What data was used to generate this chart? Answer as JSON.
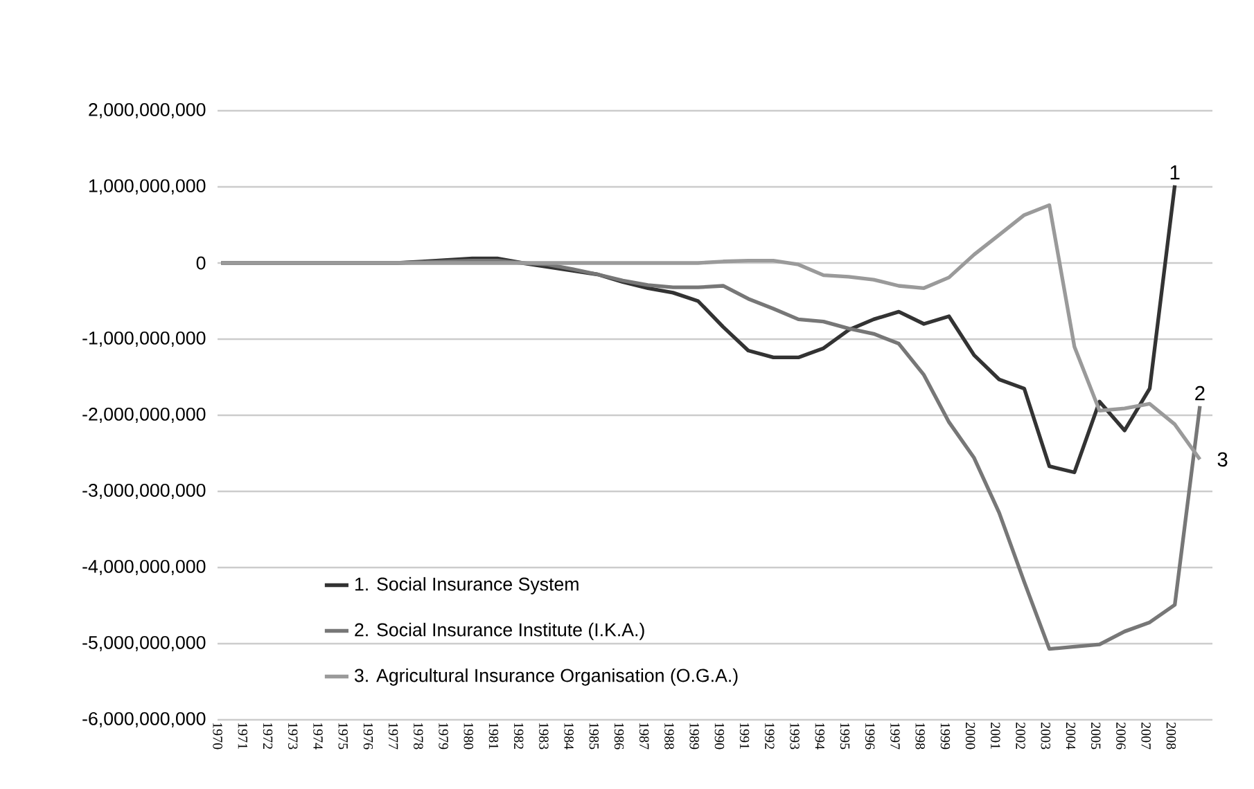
{
  "chart_data": {
    "type": "line",
    "categories": [
      "1970",
      "1971",
      "1972",
      "1973",
      "1974",
      "1975",
      "1976",
      "1977",
      "1978",
      "1979",
      "1980",
      "1981",
      "1982",
      "1983",
      "1984",
      "1985",
      "1986",
      "1987",
      "1988",
      "1989",
      "1990",
      "1991",
      "1992",
      "1993",
      "1994",
      "1995",
      "1996",
      "1997",
      "1998",
      "1999",
      "2000",
      "2001",
      "2002",
      "2003",
      "2004",
      "2005",
      "2006",
      "2007",
      "2008",
      null
    ],
    "series": [
      {
        "name": "1. Social Insurance System",
        "color": "#333333",
        "values": [
          0,
          0,
          0,
          0,
          0,
          0,
          0,
          0,
          20000000,
          40000000,
          60000000,
          60000000,
          0,
          -50000000,
          -100000000,
          -150000000,
          -250000000,
          -330000000,
          -390000000,
          -500000000,
          -840000000,
          -1150000000,
          -1240000000,
          -1240000000,
          -1120000000,
          -880000000,
          -740000000,
          -640000000,
          -800000000,
          -700000000,
          -1210000000,
          -1530000000,
          -1650000000,
          -2670000000,
          -2750000000,
          -1820000000,
          -2200000000,
          -1650000000,
          1020000000,
          null
        ]
      },
      {
        "name": "2. Social Insurance Institute (I.K.A.)",
        "color": "#777777",
        "values": [
          0,
          0,
          0,
          0,
          0,
          0,
          0,
          0,
          10000000,
          20000000,
          30000000,
          30000000,
          0,
          -20000000,
          -80000000,
          -150000000,
          -230000000,
          -290000000,
          -320000000,
          -320000000,
          -300000000,
          -470000000,
          -600000000,
          -740000000,
          -770000000,
          -860000000,
          -930000000,
          -1060000000,
          -1470000000,
          -2090000000,
          -2560000000,
          -3280000000,
          -4190000000,
          -5070000000,
          -5040000000,
          -5010000000,
          -4840000000,
          -4720000000,
          -4490000000,
          -1880000000
        ]
      },
      {
        "name": "3. Agricultural Insurance Organisation (O.G.A.)",
        "color": "#9a9a9a",
        "values": [
          0,
          0,
          0,
          0,
          0,
          0,
          0,
          0,
          0,
          0,
          0,
          0,
          0,
          0,
          0,
          0,
          0,
          0,
          0,
          0,
          20000000,
          30000000,
          30000000,
          -20000000,
          -160000000,
          -180000000,
          -220000000,
          -300000000,
          -330000000,
          -190000000,
          110000000,
          370000000,
          630000000,
          760000000,
          -1100000000,
          -1940000000,
          -1910000000,
          -1850000000,
          -2120000000,
          -2580000000
        ]
      }
    ],
    "ylim": [
      -6000000000,
      2000000000
    ],
    "yticks": [
      {
        "value": -6000000000,
        "label": "-6,000,000,000"
      },
      {
        "value": -5000000000,
        "label": "-5,000,000,000"
      },
      {
        "value": -4000000000,
        "label": "-4,000,000,000"
      },
      {
        "value": -3000000000,
        "label": "-3,000,000,000"
      },
      {
        "value": -2000000000,
        "label": "-2,000,000,000"
      },
      {
        "value": -1000000000,
        "label": "-1,000,000,000"
      },
      {
        "value": 0,
        "label": "0"
      },
      {
        "value": 1000000000,
        "label": "1,000,000,000"
      },
      {
        "value": 2000000000,
        "label": "2,000,000,000"
      }
    ],
    "grid": "y",
    "legend": "bottom left",
    "annotations": [
      {
        "text": "1",
        "x": "2008",
        "y": 1020000000
      },
      "2",
      "3"
    ]
  }
}
